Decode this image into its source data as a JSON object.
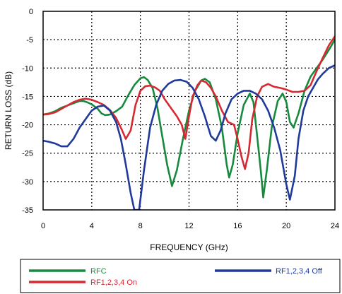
{
  "chart_data": {
    "type": "line",
    "title": "",
    "xlabel": "FREQUENCY (GHz)",
    "ylabel": "RETURN LOSS (dB)",
    "xlim": [
      0,
      24
    ],
    "ylim": [
      -35,
      0
    ],
    "xticks": [
      "0",
      "4",
      "8",
      "12",
      "16",
      "20",
      "24"
    ],
    "yticks": [
      "0",
      "-5",
      "-10",
      "-15",
      "-20",
      "-25",
      "-30",
      "-35"
    ],
    "grid": true,
    "grid_style": "dotted",
    "legend_position": "bottom",
    "series": [
      {
        "name": "RFC",
        "color": "#178a3e",
        "points": [
          [
            0,
            -18.2
          ],
          [
            0.5,
            -18.0
          ],
          [
            1,
            -17.6
          ],
          [
            1.5,
            -17.0
          ],
          [
            2,
            -16.6
          ],
          [
            2.5,
            -16.2
          ],
          [
            3,
            -15.8
          ],
          [
            3.3,
            -15.8
          ],
          [
            3.6,
            -16.0
          ],
          [
            4,
            -16.4
          ],
          [
            4.5,
            -17.2
          ],
          [
            4.8,
            -18.0
          ],
          [
            5.1,
            -18.3
          ],
          [
            5.5,
            -18.2
          ],
          [
            6,
            -17.6
          ],
          [
            6.5,
            -16.8
          ],
          [
            7,
            -14.8
          ],
          [
            7.5,
            -13.0
          ],
          [
            8,
            -11.8
          ],
          [
            8.3,
            -11.6
          ],
          [
            8.6,
            -12.1
          ],
          [
            9,
            -13.5
          ],
          [
            9.4,
            -17.0
          ],
          [
            9.8,
            -22.0
          ],
          [
            10.2,
            -27.0
          ],
          [
            10.6,
            -30.8
          ],
          [
            11,
            -28.0
          ],
          [
            11.5,
            -22.5
          ],
          [
            12,
            -17.5
          ],
          [
            12.5,
            -14.0
          ],
          [
            13,
            -12.2
          ],
          [
            13.3,
            -11.9
          ],
          [
            13.7,
            -12.5
          ],
          [
            14.2,
            -15.5
          ],
          [
            14.7,
            -20.5
          ],
          [
            15.1,
            -27.0
          ],
          [
            15.3,
            -29.3
          ],
          [
            15.6,
            -27.0
          ],
          [
            16,
            -21.5
          ],
          [
            16.5,
            -16.5
          ],
          [
            17,
            -14.5
          ],
          [
            17.3,
            -16.0
          ],
          [
            17.6,
            -22.0
          ],
          [
            17.9,
            -28.0
          ],
          [
            18.1,
            -32.8
          ],
          [
            18.4,
            -28.0
          ],
          [
            18.8,
            -20.5
          ],
          [
            19.3,
            -15.8
          ],
          [
            19.7,
            -14.5
          ],
          [
            20,
            -16.0
          ],
          [
            20.3,
            -19.5
          ],
          [
            20.6,
            -20.5
          ],
          [
            21,
            -18.0
          ],
          [
            21.5,
            -14.0
          ],
          [
            22,
            -11.5
          ],
          [
            22.5,
            -10.0
          ],
          [
            23,
            -8.5
          ],
          [
            23.5,
            -6.8
          ],
          [
            24,
            -5.0
          ]
        ]
      },
      {
        "name": "RF1,2,3,4 On",
        "color": "#d62a33",
        "points": [
          [
            0,
            -18.2
          ],
          [
            0.5,
            -18.1
          ],
          [
            1,
            -17.8
          ],
          [
            1.5,
            -17.2
          ],
          [
            2,
            -16.6
          ],
          [
            2.5,
            -16.0
          ],
          [
            3,
            -15.6
          ],
          [
            3.5,
            -15.4
          ],
          [
            4,
            -15.6
          ],
          [
            4.5,
            -16.0
          ],
          [
            5,
            -16.5
          ],
          [
            5.5,
            -17.4
          ],
          [
            6,
            -18.8
          ],
          [
            6.5,
            -21.0
          ],
          [
            6.8,
            -22.5
          ],
          [
            7.2,
            -21.0
          ],
          [
            7.6,
            -16.5
          ],
          [
            8,
            -14.0
          ],
          [
            8.4,
            -13.2
          ],
          [
            8.8,
            -13.1
          ],
          [
            9.2,
            -13.4
          ],
          [
            9.6,
            -14.0
          ],
          [
            10,
            -15.5
          ],
          [
            10.5,
            -17.0
          ],
          [
            11,
            -18.5
          ],
          [
            11.4,
            -20.0
          ],
          [
            11.7,
            -22.5
          ],
          [
            12,
            -18.5
          ],
          [
            12.3,
            -15.0
          ],
          [
            12.7,
            -13.0
          ],
          [
            13,
            -12.2
          ],
          [
            13.4,
            -12.5
          ],
          [
            13.8,
            -13.5
          ],
          [
            14.2,
            -15.0
          ],
          [
            14.7,
            -17.5
          ],
          [
            15.2,
            -19.5
          ],
          [
            15.7,
            -20.0
          ],
          [
            16,
            -22.5
          ],
          [
            16.3,
            -25.5
          ],
          [
            16.6,
            -27.8
          ],
          [
            16.9,
            -25.0
          ],
          [
            17.2,
            -19.0
          ],
          [
            17.6,
            -15.0
          ],
          [
            18,
            -13.3
          ],
          [
            18.5,
            -12.8
          ],
          [
            19,
            -13.3
          ],
          [
            19.5,
            -13.5
          ],
          [
            20,
            -13.8
          ],
          [
            20.5,
            -14.2
          ],
          [
            21,
            -14.2
          ],
          [
            21.5,
            -14.0
          ],
          [
            22,
            -13.0
          ],
          [
            22.5,
            -10.5
          ],
          [
            23,
            -8.2
          ],
          [
            23.5,
            -6.0
          ],
          [
            24,
            -4.4
          ]
        ]
      },
      {
        "name": "RF1,2,3,4 Off",
        "color": "#203a9a",
        "points": [
          [
            0,
            -22.8
          ],
          [
            0.5,
            -23.0
          ],
          [
            1,
            -23.3
          ],
          [
            1.5,
            -23.8
          ],
          [
            2,
            -23.8
          ],
          [
            2.5,
            -22.5
          ],
          [
            3,
            -20.5
          ],
          [
            3.5,
            -19.0
          ],
          [
            4,
            -17.5
          ],
          [
            4.5,
            -16.8
          ],
          [
            5,
            -16.6
          ],
          [
            5.5,
            -17.5
          ],
          [
            6,
            -19.5
          ],
          [
            6.4,
            -22.5
          ],
          [
            6.8,
            -27.0
          ],
          [
            7.2,
            -32.0
          ],
          [
            7.5,
            -35.0
          ],
          [
            7.9,
            -35.0
          ],
          [
            8.3,
            -28.0
          ],
          [
            8.8,
            -20.5
          ],
          [
            9.3,
            -16.5
          ],
          [
            9.8,
            -14.0
          ],
          [
            10.3,
            -12.8
          ],
          [
            10.8,
            -12.2
          ],
          [
            11.3,
            -12.1
          ],
          [
            11.8,
            -12.4
          ],
          [
            12.3,
            -13.5
          ],
          [
            12.8,
            -15.5
          ],
          [
            13.3,
            -18.5
          ],
          [
            13.8,
            -22.0
          ],
          [
            14.2,
            -22.8
          ],
          [
            14.6,
            -21.0
          ],
          [
            15,
            -18.0
          ],
          [
            15.5,
            -15.5
          ],
          [
            16,
            -14.5
          ],
          [
            16.5,
            -14.0
          ],
          [
            17,
            -14.0
          ],
          [
            17.5,
            -14.5
          ],
          [
            18,
            -15.5
          ],
          [
            18.5,
            -17.5
          ],
          [
            19,
            -20.5
          ],
          [
            19.5,
            -24.5
          ],
          [
            20,
            -30.5
          ],
          [
            20.3,
            -33.2
          ],
          [
            20.7,
            -29.0
          ],
          [
            21,
            -22.5
          ],
          [
            21.4,
            -17.5
          ],
          [
            21.8,
            -15.0
          ],
          [
            22.2,
            -13.5
          ],
          [
            22.6,
            -12.0
          ],
          [
            23,
            -11.0
          ],
          [
            23.5,
            -10.0
          ],
          [
            24,
            -9.5
          ]
        ]
      }
    ]
  }
}
